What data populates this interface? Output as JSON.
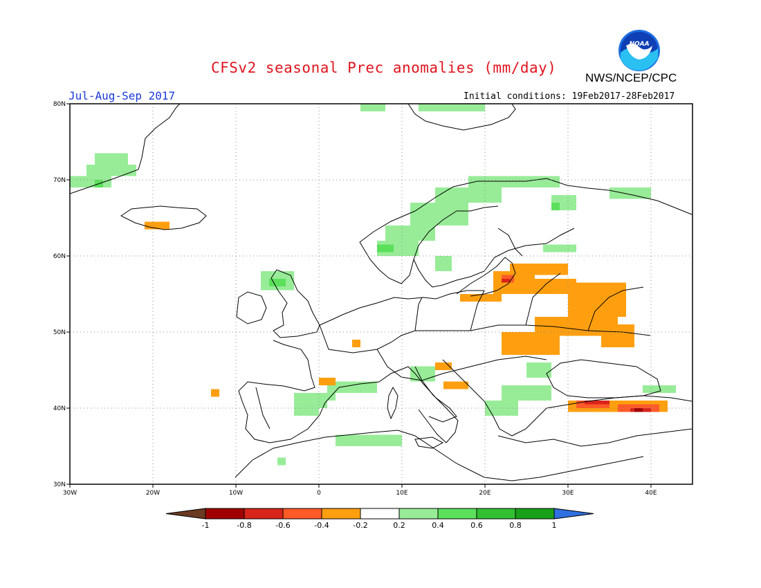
{
  "header": {
    "title": "CFSv2 seasonal Prec anomalies (mm/day)",
    "org": "NWS/NCEP/CPC",
    "period": "Jul-Aug-Sep 2017",
    "initial_conditions": "Initial conditions: 19Feb2017-28Feb2017",
    "logo_text": "NOAA"
  },
  "map": {
    "extent": {
      "lon": [
        -30,
        45
      ],
      "lat": [
        30,
        80
      ]
    },
    "lat_ticks": [
      {
        "value": 80,
        "label": "80N"
      },
      {
        "value": 70,
        "label": "70N"
      },
      {
        "value": 60,
        "label": "60N"
      },
      {
        "value": 50,
        "label": "50N"
      },
      {
        "value": 40,
        "label": "40N"
      },
      {
        "value": 30,
        "label": "30N"
      }
    ],
    "lon_ticks": [
      {
        "value": -30,
        "label": "30W"
      },
      {
        "value": -20,
        "label": "20W"
      },
      {
        "value": -10,
        "label": "10W"
      },
      {
        "value": 0,
        "label": "0"
      },
      {
        "value": 10,
        "label": "10E"
      },
      {
        "value": 20,
        "label": "20E"
      },
      {
        "value": 30,
        "label": "30E"
      },
      {
        "value": 40,
        "label": "40E"
      }
    ],
    "gridlines": true
  },
  "colorbar": {
    "labels": [
      "-1",
      "-0.8",
      "-0.6",
      "-0.4",
      "-0.2",
      "0.2",
      "0.4",
      "0.6",
      "0.8",
      "1"
    ],
    "under_color": "#6b3a22",
    "over_color": "#2f6fe0",
    "colors": [
      "#a00000",
      "#d8241a",
      "#ff5a28",
      "#ff9f10",
      "#ffffff",
      "#98ec98",
      "#5ce05c",
      "#32c032",
      "#18a018"
    ]
  },
  "anomalies": {
    "colors": {
      "g1": "#98ec98",
      "g2": "#5ce05c",
      "g3": "#32c032",
      "o1": "#ff9f10",
      "o2": "#ff5a28",
      "r1": "#d8241a",
      "r2": "#a00000"
    },
    "cells": [
      {
        "c": "g1",
        "lon": [
          -27,
          -23
        ],
        "lat": [
          72,
          73.5
        ]
      },
      {
        "c": "g1",
        "lon": [
          -28,
          -22
        ],
        "lat": [
          70.5,
          72
        ]
      },
      {
        "c": "g1",
        "lon": [
          -30,
          -25
        ],
        "lat": [
          69,
          70.5
        ]
      },
      {
        "c": "g2",
        "lon": [
          -27,
          -26
        ],
        "lat": [
          69,
          70
        ]
      },
      {
        "c": "g1",
        "lon": [
          5,
          8
        ],
        "lat": [
          79,
          80
        ]
      },
      {
        "c": "g1",
        "lon": [
          12,
          20
        ],
        "lat": [
          79,
          80
        ]
      },
      {
        "c": "g1",
        "lon": [
          18,
          29
        ],
        "lat": [
          69,
          70.5
        ]
      },
      {
        "c": "g1",
        "lon": [
          14,
          22
        ],
        "lat": [
          67,
          69
        ]
      },
      {
        "c": "g1",
        "lon": [
          11,
          18
        ],
        "lat": [
          64,
          67
        ]
      },
      {
        "c": "g1",
        "lon": [
          8,
          14
        ],
        "lat": [
          62,
          64
        ]
      },
      {
        "c": "g1",
        "lon": [
          7,
          12
        ],
        "lat": [
          60,
          62
        ]
      },
      {
        "c": "g2",
        "lon": [
          7,
          9
        ],
        "lat": [
          60.5,
          61.5
        ]
      },
      {
        "c": "g1",
        "lon": [
          14,
          16
        ],
        "lat": [
          58,
          60
        ]
      },
      {
        "c": "g1",
        "lon": [
          27,
          31
        ],
        "lat": [
          60.5,
          61.5
        ]
      },
      {
        "c": "g1",
        "lon": [
          28,
          31
        ],
        "lat": [
          66,
          68
        ]
      },
      {
        "c": "g2",
        "lon": [
          28,
          29
        ],
        "lat": [
          66,
          67
        ]
      },
      {
        "c": "g1",
        "lon": [
          35,
          40
        ],
        "lat": [
          67.5,
          69
        ]
      },
      {
        "c": "g1",
        "lon": [
          -7,
          -3
        ],
        "lat": [
          55.5,
          58
        ]
      },
      {
        "c": "g2",
        "lon": [
          -6,
          -4
        ],
        "lat": [
          56,
          57
        ]
      },
      {
        "c": "g1",
        "lon": [
          -3,
          1
        ],
        "lat": [
          40,
          42
        ]
      },
      {
        "c": "g1",
        "lon": [
          1,
          7
        ],
        "lat": [
          42,
          43.5
        ]
      },
      {
        "c": "g1",
        "lon": [
          -1,
          2
        ],
        "lat": [
          41,
          42
        ]
      },
      {
        "c": "g1",
        "lon": [
          -3,
          0
        ],
        "lat": [
          39,
          40
        ]
      },
      {
        "c": "g1",
        "lon": [
          11,
          14
        ],
        "lat": [
          43.5,
          45.5
        ]
      },
      {
        "c": "g1",
        "lon": [
          22,
          28
        ],
        "lat": [
          41,
          43
        ]
      },
      {
        "c": "g1",
        "lon": [
          20,
          24
        ],
        "lat": [
          39,
          41
        ]
      },
      {
        "c": "g1",
        "lon": [
          25,
          28
        ],
        "lat": [
          44,
          46
        ]
      },
      {
        "c": "g1",
        "lon": [
          39,
          43
        ],
        "lat": [
          42,
          43
        ]
      },
      {
        "c": "g1",
        "lon": [
          2,
          10
        ],
        "lat": [
          35,
          36.5
        ]
      },
      {
        "c": "g1",
        "lon": [
          -5,
          -4
        ],
        "lat": [
          32.5,
          33.5
        ]
      },
      {
        "c": "o1",
        "lon": [
          -21,
          -18
        ],
        "lat": [
          63.5,
          64.5
        ]
      },
      {
        "c": "o1",
        "lon": [
          26,
          31
        ],
        "lat": [
          55,
          57
        ]
      },
      {
        "c": "o1",
        "lon": [
          23,
          30
        ],
        "lat": [
          57.5,
          59
        ]
      },
      {
        "c": "o1",
        "lon": [
          30,
          37
        ],
        "lat": [
          52,
          56.5
        ]
      },
      {
        "c": "o1",
        "lon": [
          26,
          36
        ],
        "lat": [
          49.5,
          52
        ]
      },
      {
        "c": "o1",
        "lon": [
          22,
          29
        ],
        "lat": [
          47,
          50
        ]
      },
      {
        "c": "o1",
        "lon": [
          34,
          38
        ],
        "lat": [
          48,
          51
        ]
      },
      {
        "c": "o1",
        "lon": [
          17,
          22
        ],
        "lat": [
          54,
          55
        ]
      },
      {
        "c": "o1",
        "lon": [
          21,
          26
        ],
        "lat": [
          55,
          58
        ]
      },
      {
        "c": "o2",
        "lon": [
          22,
          23.5
        ],
        "lat": [
          56.5,
          57.5
        ]
      },
      {
        "c": "r1",
        "lon": [
          22,
          23
        ],
        "lat": [
          56.5,
          57
        ]
      },
      {
        "c": "o1",
        "lon": [
          0,
          2
        ],
        "lat": [
          43,
          44
        ]
      },
      {
        "c": "o1",
        "lon": [
          14,
          16
        ],
        "lat": [
          45,
          46
        ]
      },
      {
        "c": "o1",
        "lon": [
          15,
          18
        ],
        "lat": [
          42.5,
          43.5
        ]
      },
      {
        "c": "o1",
        "lon": [
          4,
          5
        ],
        "lat": [
          48,
          49
        ]
      },
      {
        "c": "o1",
        "lon": [
          -13,
          -12
        ],
        "lat": [
          41.5,
          42.5
        ]
      },
      {
        "c": "o1",
        "lon": [
          30,
          42
        ],
        "lat": [
          39.5,
          41
        ]
      },
      {
        "c": "o2",
        "lon": [
          31,
          35
        ],
        "lat": [
          40,
          41
        ]
      },
      {
        "c": "r1",
        "lon": [
          32,
          35
        ],
        "lat": [
          40.5,
          41
        ]
      },
      {
        "c": "o2",
        "lon": [
          36,
          41
        ],
        "lat": [
          39.5,
          40.5
        ]
      },
      {
        "c": "r1",
        "lon": [
          37.5,
          40
        ],
        "lat": [
          39.5,
          40
        ]
      },
      {
        "c": "r2",
        "lon": [
          38,
          39
        ],
        "lat": [
          39.5,
          40
        ]
      }
    ]
  }
}
